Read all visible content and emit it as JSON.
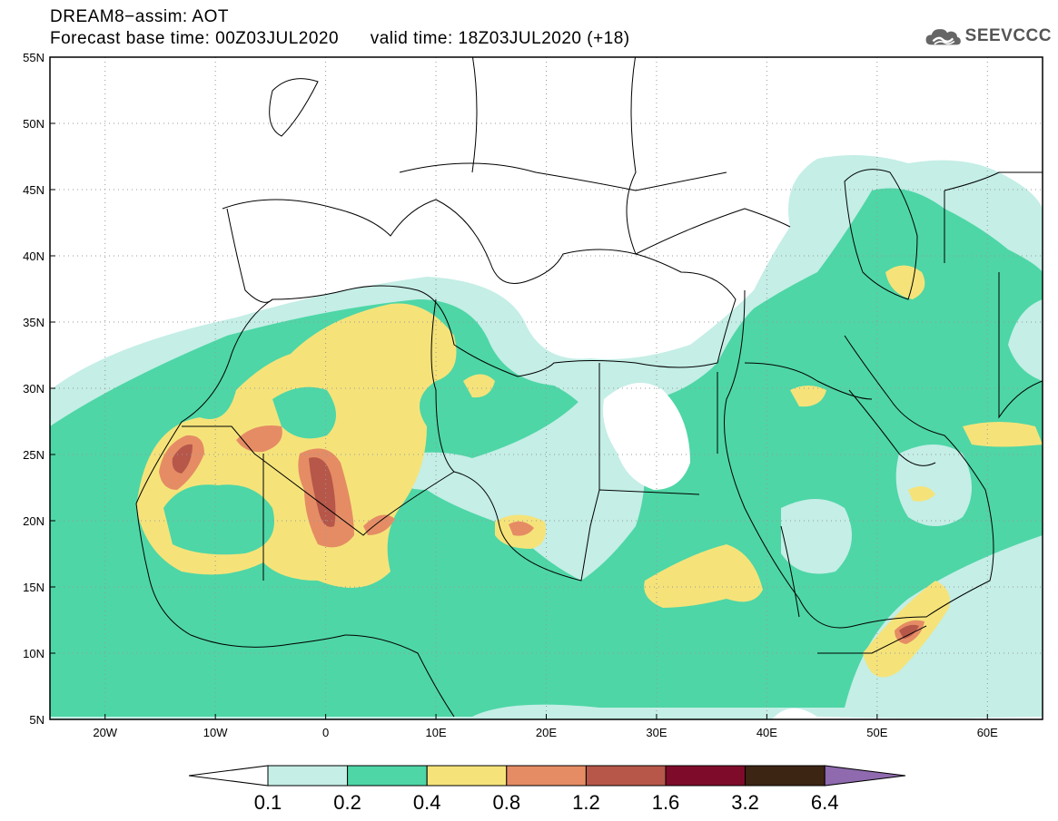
{
  "title": {
    "line1": "DREAM8−assim: AOT",
    "line2": "Forecast base time: 00Z03JUL2020      valid time: 18Z03JUL2020 (+18)"
  },
  "logo": {
    "text": "SEEVCCC",
    "icon": "cloud-icon"
  },
  "map": {
    "lon_range": [
      -25,
      65
    ],
    "lat_range": [
      5,
      55
    ],
    "lat_labels": [
      "55N",
      "50N",
      "45N",
      "40N",
      "35N",
      "30N",
      "25N",
      "20N",
      "15N",
      "10N",
      "5N"
    ],
    "lon_labels": [
      "20W",
      "10W",
      "0",
      "10E",
      "20E",
      "30E",
      "40E",
      "50E",
      "60E"
    ],
    "grid": "dotted"
  },
  "colorbar": {
    "labels": [
      "0.1",
      "0.2",
      "0.4",
      "0.8",
      "1.2",
      "1.6",
      "3.2",
      "6.4"
    ],
    "colors": [
      "#ffffff",
      "#c4eee6",
      "#4ed6a6",
      "#f5e37a",
      "#e58c65",
      "#b6574a",
      "#7f0b2a",
      "#3d2513",
      "#8f6aae"
    ]
  }
}
